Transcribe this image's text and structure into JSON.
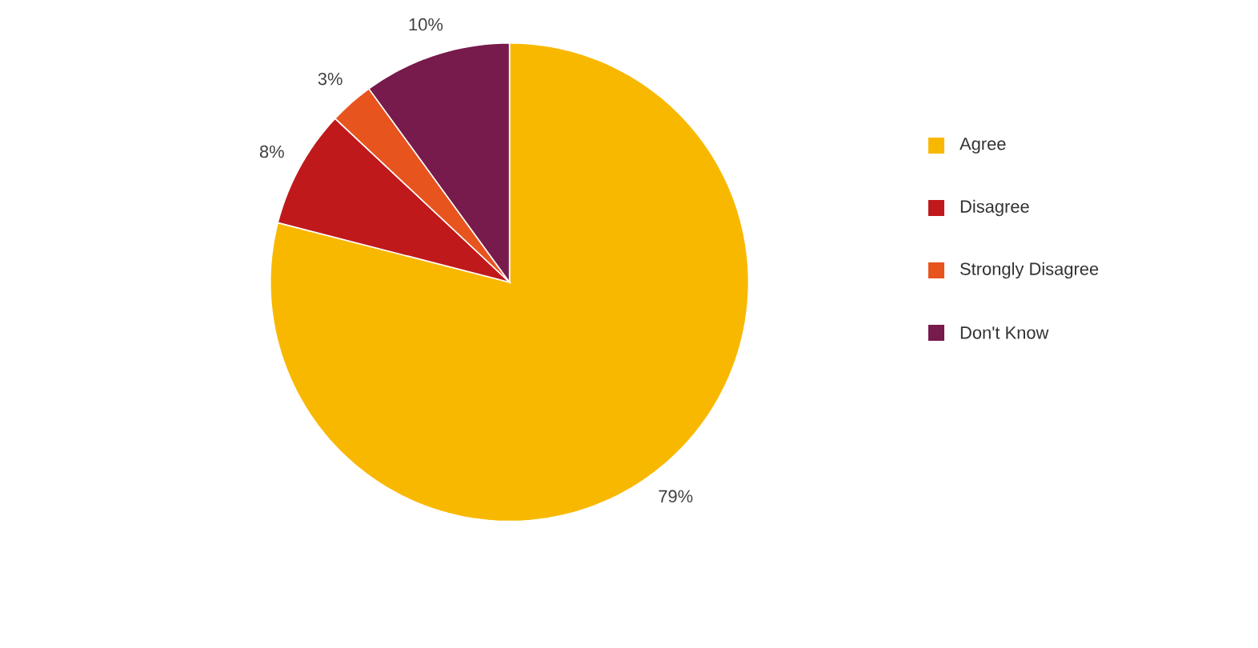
{
  "chart_data": {
    "type": "pie",
    "categories": [
      "Agree",
      "Disagree",
      "Strongly Disagree",
      "Don't Know"
    ],
    "values": [
      79,
      8,
      3,
      10
    ],
    "value_labels": [
      "79%",
      "8%",
      "3%",
      "10%"
    ],
    "colors": [
      "#f9b800",
      "#c0191c",
      "#e8541e",
      "#771a4c"
    ],
    "legend": "right"
  }
}
